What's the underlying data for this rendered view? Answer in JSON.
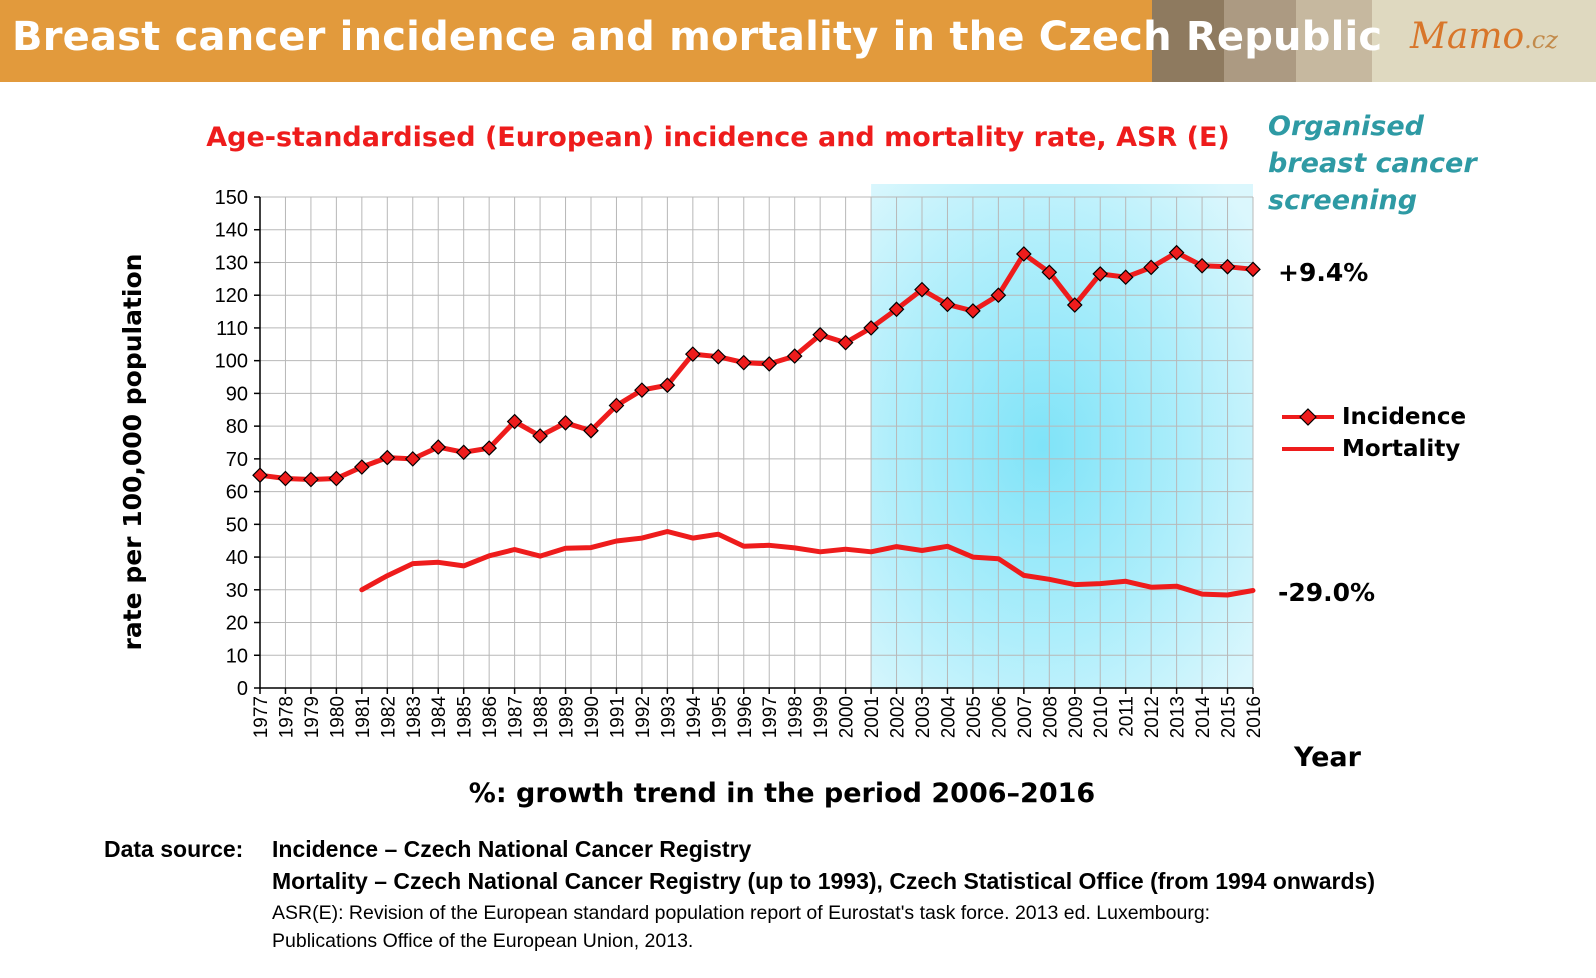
{
  "header": {
    "title": "Breast cancer incidence and mortality in the Czech Republic",
    "logo_main": "Mamo",
    "logo_tld": ".cz",
    "colors": {
      "orange": "#e29a3c",
      "logo": "#d8762a"
    }
  },
  "subtitle": "Age-standardised (European) incidence and mortality rate, ASR (E)",
  "screening_note": [
    "Organised",
    "breast cancer",
    "screening"
  ],
  "ylabel": "rate per 100,000 population",
  "xtitle": "Year",
  "legend": {
    "incidence": "Incidence",
    "mortality": "Mortality"
  },
  "pct_incidence": "+9.4%",
  "pct_mortality": "-29.0%",
  "trend_note": "%: growth trend in the period 2006–2016",
  "source": {
    "label": "Data source:",
    "line1": "Incidence – Czech National Cancer Registry",
    "line2": "Mortality – Czech National Cancer Registry (up to 1993), Czech Statistical Office (from 1994 onwards)",
    "line3": "ASR(E): Revision of the European standard population report of Eurostat's task force. 2013 ed. Luxembourg:",
    "line4": "Publications Office of the European Union, 2013."
  },
  "chart_data": {
    "type": "line",
    "title": "Age-standardised (European) incidence and mortality rate, ASR (E)",
    "xlabel": "Year",
    "ylabel": "rate per 100,000 population",
    "ylim": [
      0,
      150
    ],
    "yticks": [
      0,
      10,
      20,
      30,
      40,
      50,
      60,
      70,
      80,
      90,
      100,
      110,
      120,
      130,
      140,
      150
    ],
    "grid": true,
    "legend_position": "right",
    "x": [
      1977,
      1978,
      1979,
      1980,
      1981,
      1982,
      1983,
      1984,
      1985,
      1986,
      1987,
      1988,
      1989,
      1990,
      1991,
      1992,
      1993,
      1994,
      1995,
      1996,
      1997,
      1998,
      1999,
      2000,
      2001,
      2002,
      2003,
      2004,
      2005,
      2006,
      2007,
      2008,
      2009,
      2010,
      2011,
      2012,
      2013,
      2014,
      2015,
      2016
    ],
    "shaded_region": {
      "label": "Organised breast cancer screening",
      "x_start": 2001,
      "x_end": 2016
    },
    "series": [
      {
        "name": "Incidence",
        "color": "#ee1c1c",
        "marker": "diamond",
        "values": [
          65.0,
          64.0,
          63.7,
          64.0,
          67.5,
          70.4,
          70.0,
          73.6,
          72.0,
          73.3,
          81.4,
          77.0,
          81.0,
          78.6,
          86.3,
          91.0,
          92.5,
          102.0,
          101.2,
          99.4,
          99.0,
          101.4,
          107.9,
          105.5,
          110.0,
          115.7,
          121.7,
          117.2,
          115.2,
          120.0,
          132.6,
          127.0,
          117.0,
          126.5,
          125.5,
          128.5,
          133.0,
          129.0,
          128.7,
          127.9
        ]
      },
      {
        "name": "Mortality",
        "color": "#ee1c1c",
        "marker": "none",
        "values": [
          null,
          null,
          null,
          null,
          30.0,
          34.3,
          38.0,
          38.4,
          37.3,
          40.4,
          42.3,
          40.3,
          42.7,
          42.9,
          44.9,
          45.8,
          47.8,
          45.8,
          47.0,
          43.3,
          43.6,
          42.8,
          41.6,
          42.4,
          41.6,
          43.2,
          42.0,
          43.3,
          40.0,
          39.5,
          34.4,
          33.2,
          31.6,
          31.9,
          32.6,
          30.8,
          31.1,
          28.7,
          28.4,
          29.8
        ]
      }
    ]
  }
}
